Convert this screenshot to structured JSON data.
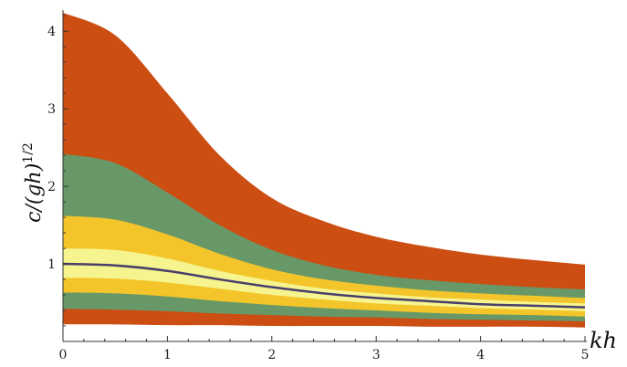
{
  "chart_data": {
    "type": "area",
    "title": "",
    "xlabel": "kh",
    "ylabel": "c/(gh)^1/2",
    "xlim": [
      0,
      5
    ],
    "ylim": [
      0,
      4.25
    ],
    "x_ticks": [
      "0",
      "1",
      "2",
      "3",
      "4",
      "5"
    ],
    "y_ticks": [
      "1",
      "2",
      "3",
      "4"
    ],
    "grid": false,
    "x": [
      0,
      0.5,
      1,
      1.5,
      2,
      2.5,
      3,
      3.5,
      4,
      4.5,
      5
    ],
    "bands": [
      {
        "color": "#cc4e12",
        "upper": [
          4.24,
          3.95,
          3.2,
          2.4,
          1.85,
          1.55,
          1.35,
          1.22,
          1.12,
          1.05,
          0.99
        ],
        "lower": [
          0.22,
          0.22,
          0.21,
          0.21,
          0.2,
          0.2,
          0.2,
          0.19,
          0.19,
          0.19,
          0.18
        ]
      },
      {
        "color": "#689868",
        "upper": [
          2.42,
          2.3,
          1.92,
          1.5,
          1.18,
          0.98,
          0.86,
          0.79,
          0.74,
          0.7,
          0.67
        ],
        "lower": [
          0.42,
          0.41,
          0.39,
          0.36,
          0.34,
          0.32,
          0.31,
          0.29,
          0.28,
          0.27,
          0.26
        ]
      },
      {
        "color": "#f3c52a",
        "upper": [
          1.62,
          1.57,
          1.38,
          1.13,
          0.93,
          0.8,
          0.72,
          0.66,
          0.62,
          0.59,
          0.56
        ],
        "lower": [
          0.63,
          0.62,
          0.58,
          0.52,
          0.47,
          0.43,
          0.4,
          0.37,
          0.35,
          0.34,
          0.32
        ]
      },
      {
        "color": "#f6f48e",
        "upper": [
          1.2,
          1.18,
          1.07,
          0.91,
          0.78,
          0.68,
          0.62,
          0.57,
          0.54,
          0.51,
          0.49
        ],
        "lower": [
          0.82,
          0.81,
          0.76,
          0.68,
          0.6,
          0.54,
          0.49,
          0.46,
          0.43,
          0.41,
          0.39
        ]
      }
    ],
    "series": [
      {
        "color": "#4a3f6b",
        "y": [
          1.0,
          0.98,
          0.91,
          0.8,
          0.7,
          0.62,
          0.56,
          0.52,
          0.48,
          0.46,
          0.44
        ]
      }
    ]
  }
}
